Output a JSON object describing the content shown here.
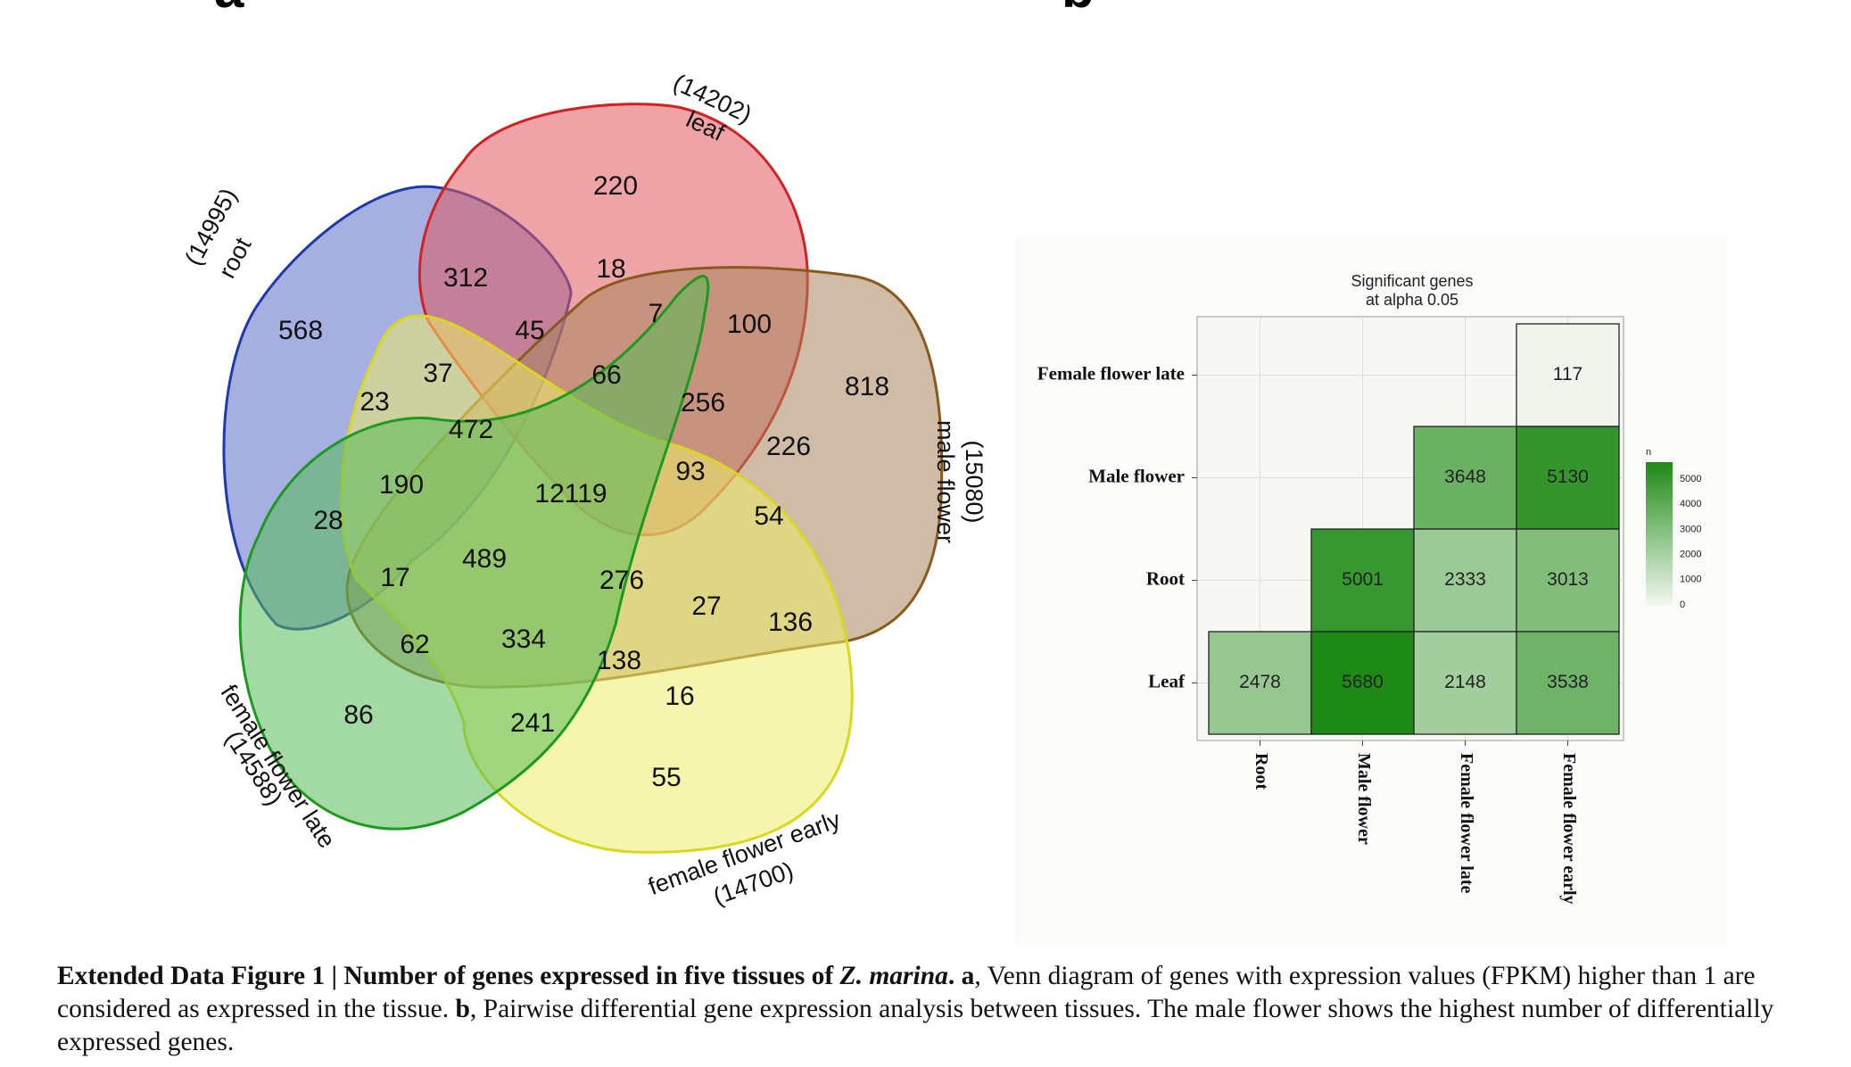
{
  "panels": {
    "a": "a",
    "b": "b"
  },
  "chart_data": [
    {
      "type": "venn",
      "sets": [
        {
          "name": "root",
          "total": "(14995)",
          "color": "#5b6fc8",
          "stroke": "#1f3aa8"
        },
        {
          "name": "leaf",
          "total": "(14202)",
          "color": "#e05a5f",
          "stroke": "#d42020"
        },
        {
          "name": "male flower",
          "total": "(15080)",
          "color": "#a7835c",
          "stroke": "#8a5a1c"
        },
        {
          "name": "female flower early",
          "total": "(14700)",
          "color": "#ecec6a",
          "stroke": "#d8d820"
        },
        {
          "name": "female flower late",
          "total": "(14588)",
          "color": "#57bb57",
          "stroke": "#1d9a1d"
        }
      ],
      "regions": [
        "220",
        "312",
        "18",
        "568",
        "7",
        "100",
        "45",
        "37",
        "66",
        "818",
        "23",
        "256",
        "472",
        "226",
        "190",
        "93",
        "12119",
        "28",
        "54",
        "489",
        "17",
        "276",
        "27",
        "136",
        "62",
        "334",
        "138",
        "16",
        "86",
        "241",
        "55"
      ]
    },
    {
      "type": "heatmap",
      "title": [
        "Significant genes",
        "at alpha 0.05"
      ],
      "rows": [
        "Female flower late",
        "Male flower",
        "Root",
        "Leaf"
      ],
      "columns": [
        "Root",
        "Male flower",
        "Female flower late",
        "Female flower early"
      ],
      "cells": [
        {
          "row": "Female flower late",
          "col": "Female flower early",
          "value": 117
        },
        {
          "row": "Male flower",
          "col": "Female flower late",
          "value": 3648
        },
        {
          "row": "Male flower",
          "col": "Female flower early",
          "value": 5130
        },
        {
          "row": "Root",
          "col": "Male flower",
          "value": 5001
        },
        {
          "row": "Root",
          "col": "Female flower late",
          "value": 2333
        },
        {
          "row": "Root",
          "col": "Female flower early",
          "value": 3013
        },
        {
          "row": "Leaf",
          "col": "Root",
          "value": 2478
        },
        {
          "row": "Leaf",
          "col": "Male flower",
          "value": 5680
        },
        {
          "row": "Leaf",
          "col": "Female flower late",
          "value": 2148
        },
        {
          "row": "Leaf",
          "col": "Female flower early",
          "value": 3538
        }
      ],
      "legend": {
        "title": "n",
        "ticks": [
          "5000",
          "4000",
          "3000",
          "2000",
          "1000",
          "0"
        ],
        "range": [
          0,
          5680
        ]
      },
      "colors": {
        "low": "#f3f7f0",
        "high": "#1e8a16"
      }
    }
  ],
  "caption": {
    "label": "Extended Data Figure 1 | Number of genes expressed in five tissues of ",
    "species": "Z. marina",
    "label_end": ". ",
    "a_label": "a",
    "a_text": ", Venn diagram of genes with expression values (FPKM) higher than 1 are considered as expressed in the tissue. ",
    "b_label": "b",
    "b_text": ", Pairwise differential gene expression analysis between tissues. The male flower shows the highest number of differentially expressed genes."
  }
}
